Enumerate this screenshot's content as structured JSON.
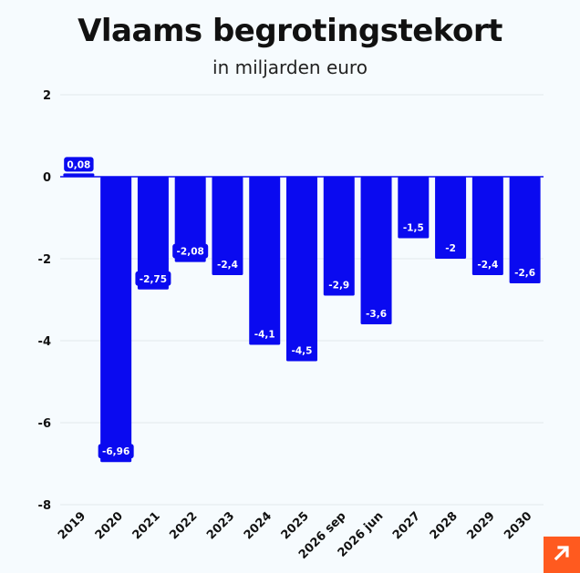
{
  "header": {
    "title": "Vlaams begrotingstekort",
    "subtitle": "in miljarden euro"
  },
  "colors": {
    "bar": "#0a0af0",
    "label_bg": "#0a0af0",
    "label_text": "#ffffff",
    "grid": "#e3e8ec",
    "zero_line": "#0a0af0",
    "logo": "#ff5a1f"
  },
  "logo_icon": "arrow-up-right-icon",
  "chart_data": {
    "type": "bar",
    "title": "Vlaams begrotingstekort",
    "subtitle": "in miljarden euro",
    "categories": [
      "2019",
      "2020",
      "2021",
      "2022",
      "2023",
      "2024",
      "2025",
      "2026 sep",
      "2026 jun",
      "2027",
      "2028",
      "2029",
      "2030"
    ],
    "values": [
      0.08,
      -6.96,
      -2.75,
      -2.08,
      -2.4,
      -4.1,
      -4.5,
      -2.9,
      -3.6,
      -1.5,
      -2,
      -2.4,
      -2.6
    ],
    "data_labels": [
      "0,08",
      "-6,96",
      "-2,75",
      "-2,08",
      "-2,4",
      "-4,1",
      "-4,5",
      "-2,9",
      "-3,6",
      "-1,5",
      "-2",
      "-2,4",
      "-2,6"
    ],
    "y_ticks": [
      2,
      0,
      -2,
      -4,
      -6,
      -8
    ],
    "ylim": [
      -8,
      2
    ],
    "grid": true,
    "legend": "none"
  }
}
